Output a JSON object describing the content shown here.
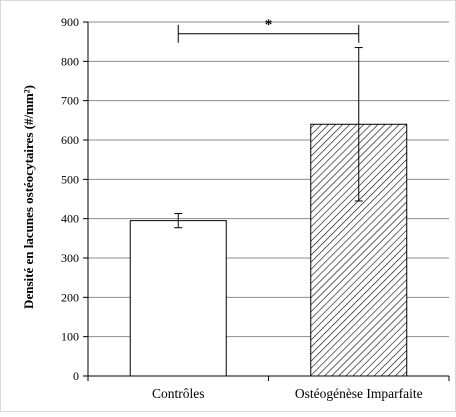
{
  "chart_data": {
    "type": "bar",
    "title": "",
    "xlabel": "",
    "ylabel": "Densité en lacunes ostéocytaires (#/mm²)",
    "ylim": [
      0,
      900
    ],
    "yticks": [
      0,
      100,
      200,
      300,
      400,
      500,
      600,
      700,
      800,
      900
    ],
    "grid": true,
    "categories": [
      "Contrôles",
      "Ostéogénèse Imparfaite"
    ],
    "values": [
      395,
      640
    ],
    "error": [
      18,
      195
    ],
    "bar_fills": [
      "white",
      "diagonal-hatch"
    ],
    "significance": {
      "between": [
        0,
        1
      ],
      "label": "*",
      "level": 870
    }
  },
  "colors": {
    "bar_edge": "#000000",
    "grid": "#8c8c8c",
    "axis": "#000000"
  }
}
